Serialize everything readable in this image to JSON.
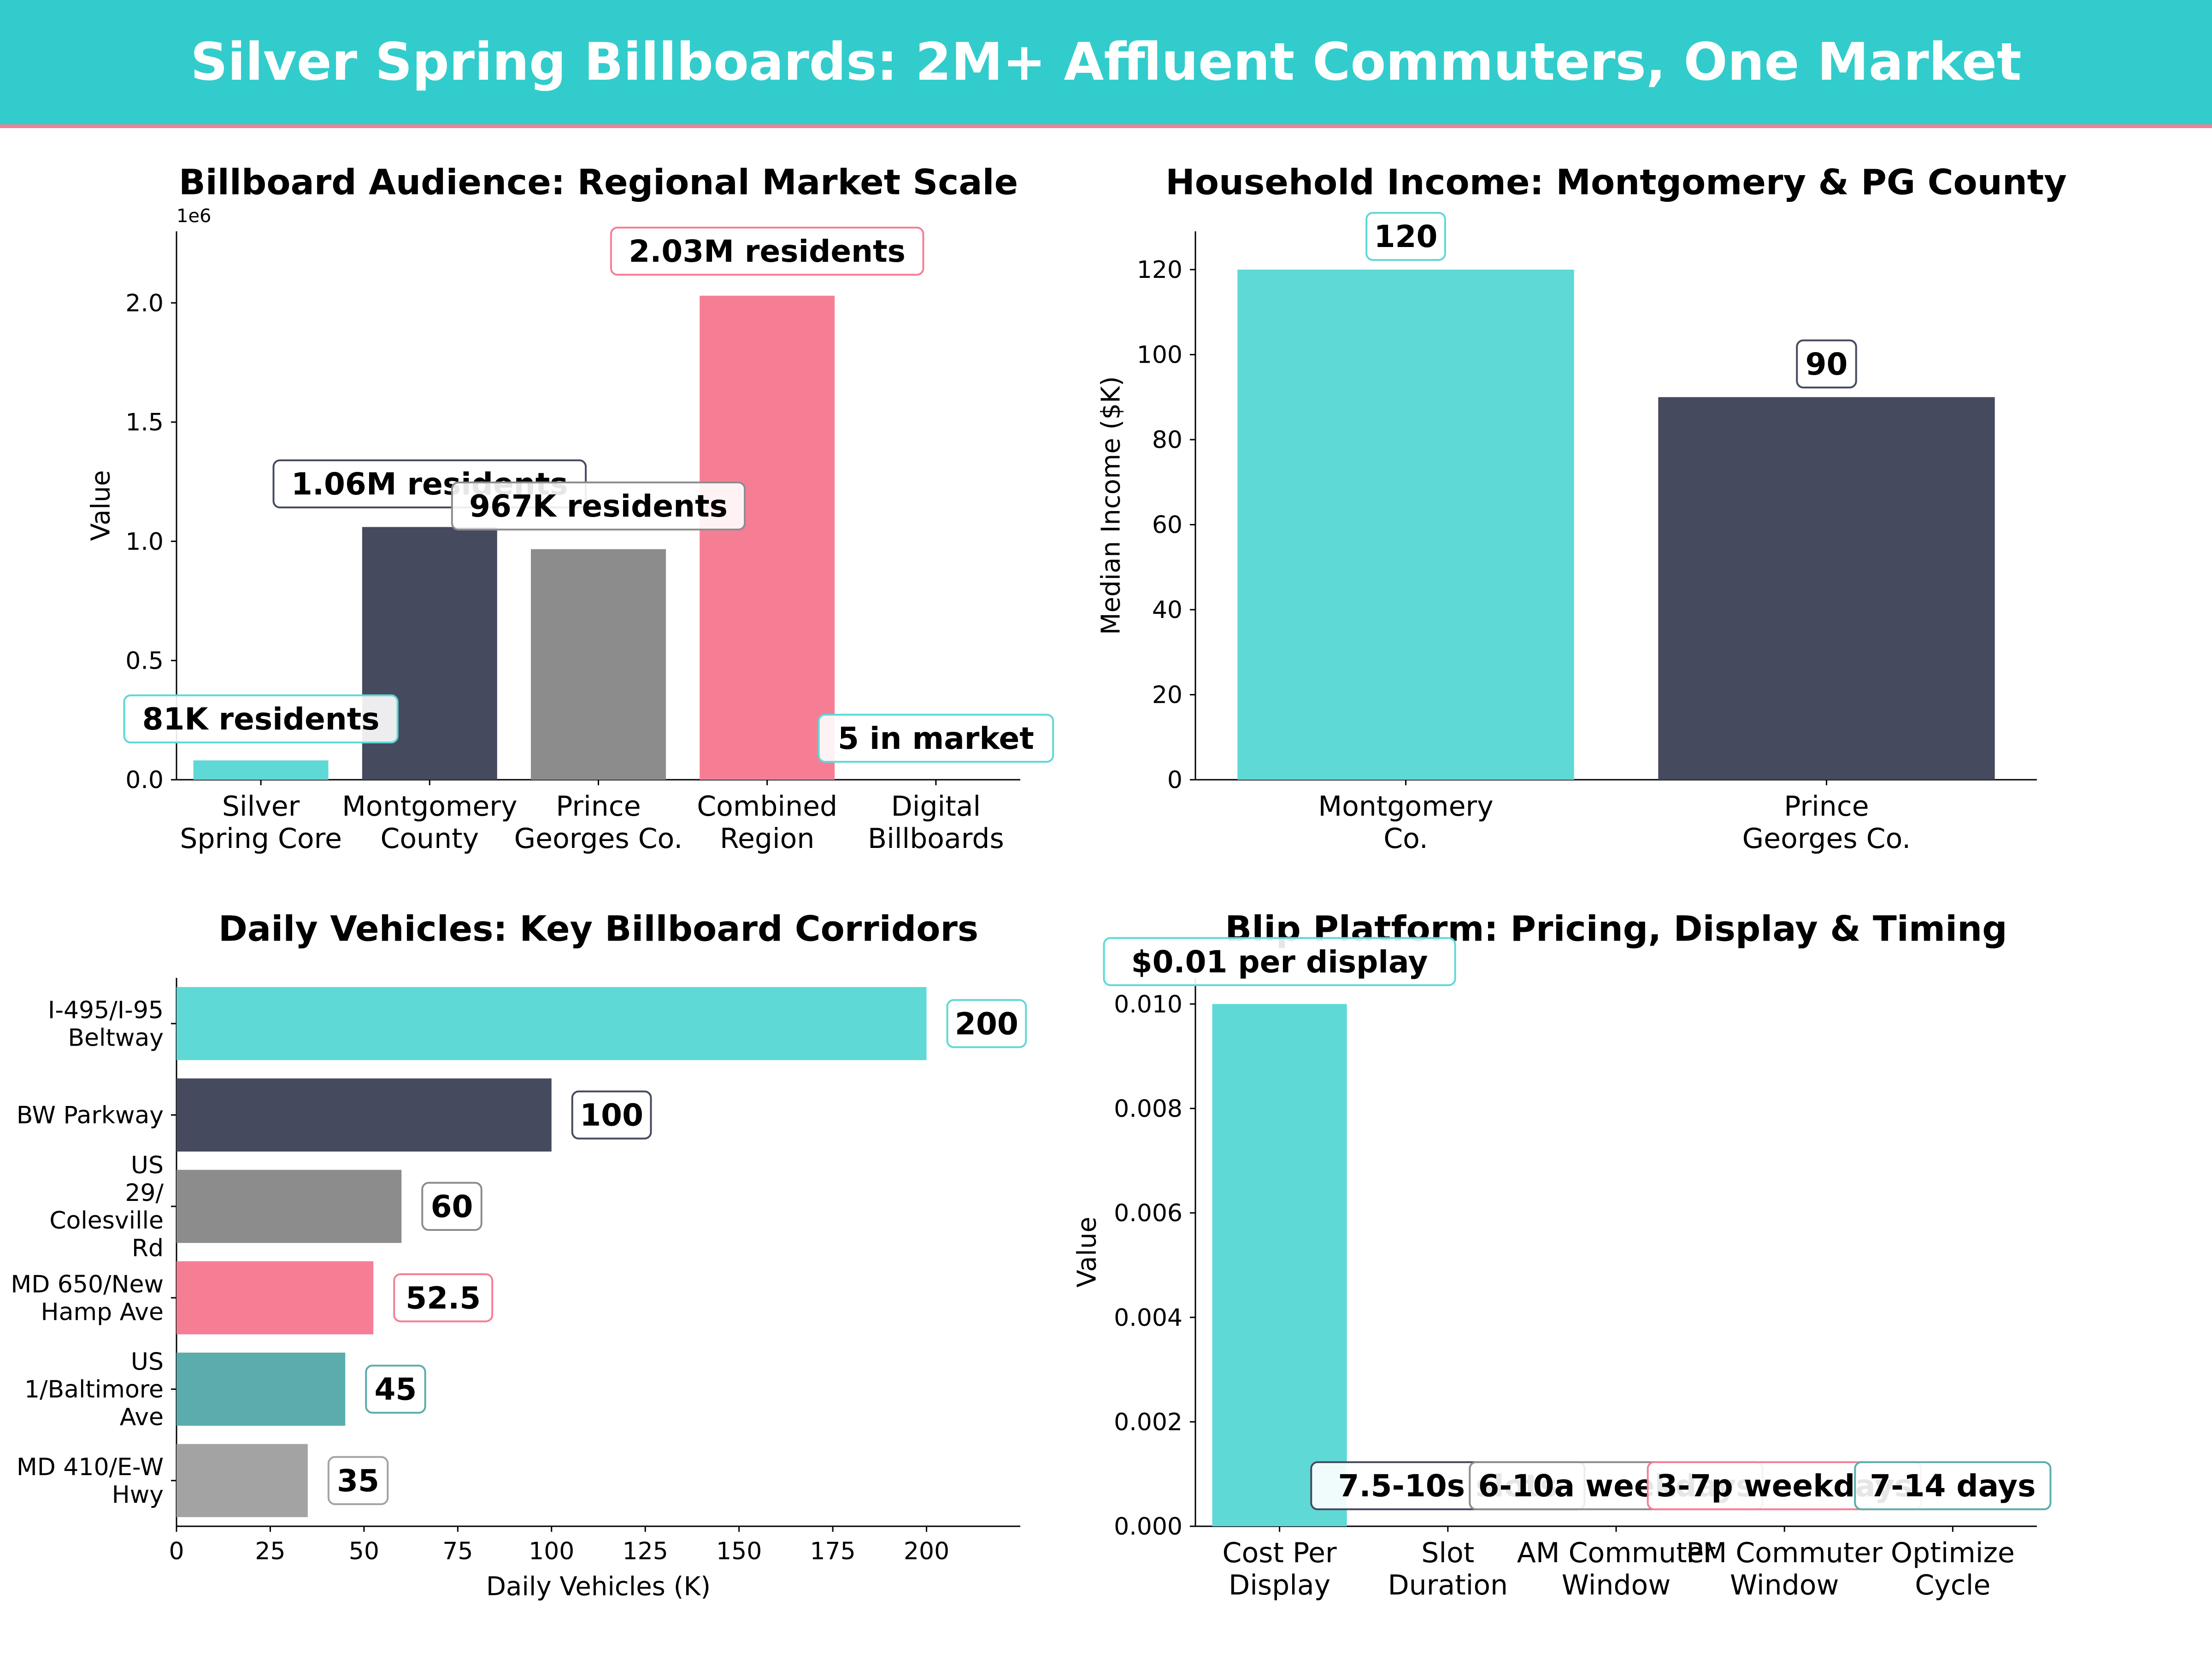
{
  "page": {
    "title": "Silver Spring Billboards: 2M+ Affluent Commuters, One Market"
  },
  "colors": {
    "banner": "#33cccc",
    "accent": "#f67e94",
    "teal": "#5ed9d6",
    "navy": "#464a5f",
    "gray": "#8c8c8c",
    "light_gray": "#a3a3a3",
    "dark_teal": "#5aadac"
  },
  "chart_data": [
    {
      "id": "audience",
      "type": "bar",
      "title": "Billboard Audience: Regional Market Scale",
      "xlabel": "",
      "ylabel": "Value",
      "offset_label": "1e6",
      "categories": [
        "Silver\nSpring Core",
        "Montgomery\nCounty",
        "Prince\nGeorges Co.",
        "Combined\nRegion",
        "Digital\nBillboards"
      ],
      "values": [
        81000,
        1060000,
        967000,
        2030000,
        5
      ],
      "data_labels": [
        "81K residents",
        "1.06M residents",
        "967K residents",
        "2.03M residents",
        "5 in market"
      ],
      "colors": [
        "#5ed9d6",
        "#464a5f",
        "#8c8c8c",
        "#f67e94",
        "#5ed9d6"
      ],
      "ylim": [
        0,
        2300000
      ],
      "yticks": [
        0,
        500000,
        1000000,
        1500000,
        2000000
      ],
      "ytick_labels": [
        "0.0",
        "0.5",
        "1.0",
        "1.5",
        "2.0"
      ],
      "grid": false
    },
    {
      "id": "income",
      "type": "bar",
      "title": "Household Income: Montgomery & PG County",
      "xlabel": "",
      "ylabel": "Median Income ($K)",
      "categories": [
        "Montgomery\nCo.",
        "Prince\nGeorges Co."
      ],
      "values": [
        120,
        90
      ],
      "data_labels": [
        "120",
        "90"
      ],
      "colors": [
        "#5ed9d6",
        "#464a5f"
      ],
      "ylim": [
        0,
        129
      ],
      "yticks": [
        0,
        20,
        40,
        60,
        80,
        100,
        120
      ],
      "ytick_labels": [
        "0",
        "20",
        "40",
        "60",
        "80",
        "100",
        "120"
      ],
      "grid": false
    },
    {
      "id": "vehicles",
      "type": "bar",
      "orientation": "horizontal",
      "title": "Daily Vehicles: Key Billboard Corridors",
      "xlabel": "Daily Vehicles (K)",
      "ylabel": "",
      "categories": [
        "MD 410/E-W\nHwy",
        "US\n1/Baltimore\nAve",
        "MD 650/New\nHamp Ave",
        "US\n29/\nColesville\nRd",
        "BW Parkway",
        "I-495/I-95\nBeltway"
      ],
      "values": [
        35,
        45,
        52.5,
        60,
        100,
        200
      ],
      "data_labels": [
        "35",
        "45",
        "52.5",
        "60",
        "100",
        "200"
      ],
      "colors": [
        "#a3a3a3",
        "#5aadac",
        "#f67e94",
        "#8c8c8c",
        "#464a5f",
        "#5ed9d6"
      ],
      "xlim": [
        0,
        225
      ],
      "xticks": [
        0,
        25,
        50,
        75,
        100,
        125,
        150,
        175,
        200
      ],
      "xtick_labels": [
        "0",
        "25",
        "50",
        "75",
        "100",
        "125",
        "150",
        "175",
        "200"
      ],
      "grid": false
    },
    {
      "id": "blip",
      "type": "bar",
      "title": "Blip Platform: Pricing, Display & Timing",
      "xlabel": "",
      "ylabel": "Value",
      "categories": [
        "Cost Per\nDisplay",
        "Slot\nDuration",
        "AM Commuter\nWindow",
        "PM Commuter\nWindow",
        "Optimize\nCycle"
      ],
      "values": [
        0.01,
        0,
        0,
        0,
        0
      ],
      "data_labels": [
        "$0.01 per display",
        "7.5-10s slots",
        "6-10a weekdays",
        "3-7p weekdays",
        "7-14 days"
      ],
      "colors": [
        "#5ed9d6",
        "#464a5f",
        "#8c8c8c",
        "#f67e94",
        "#5aadac"
      ],
      "ylim": [
        0,
        0.0105
      ],
      "yticks": [
        0,
        0.002,
        0.004,
        0.006,
        0.008,
        0.01
      ],
      "ytick_labels": [
        "0.000",
        "0.002",
        "0.004",
        "0.006",
        "0.008",
        "0.010"
      ],
      "grid": false
    }
  ]
}
